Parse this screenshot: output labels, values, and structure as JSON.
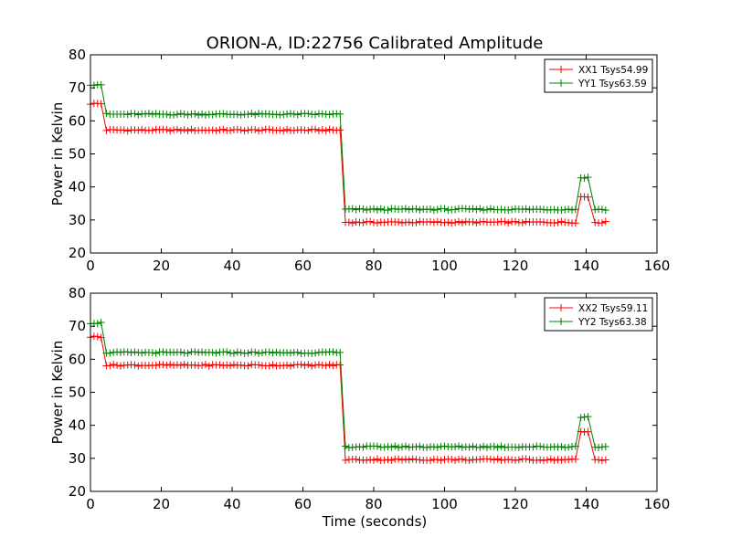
{
  "figure": {
    "title": "ORION-A, ID:22756 Calibrated Amplitude",
    "xlabel": "Time (seconds)"
  },
  "chart_data": [
    {
      "type": "line",
      "title": "ORION-A, ID:22756 Calibrated Amplitude",
      "xlabel": "",
      "ylabel": "Power in Kelvin",
      "xlim": [
        0,
        160
      ],
      "ylim": [
        20,
        80
      ],
      "xticks": [
        "0",
        "20",
        "40",
        "60",
        "80",
        "100",
        "120",
        "140",
        "160"
      ],
      "yticks": [
        "20",
        "30",
        "40",
        "50",
        "60",
        "70",
        "80"
      ],
      "legend_position": "top-right",
      "grid": false,
      "marker": "+",
      "series": [
        {
          "name": "XX1 Tsys54.99",
          "color": "#ff0000",
          "segments": [
            {
              "x_start": 0,
              "x_end": 3,
              "y": 65.2
            },
            {
              "x_start": 4.5,
              "x_end": 70.5,
              "y": 57.2
            },
            {
              "x_start": 72,
              "x_end": 137.5,
              "y": 29.3
            },
            {
              "x_start": 138.5,
              "x_end": 141,
              "y": 37.0
            },
            {
              "x_start": 142.5,
              "x_end": 145.5,
              "y": 29.3
            }
          ]
        },
        {
          "name": "YY1 Tsys63.59",
          "color": "#008000",
          "segments": [
            {
              "x_start": 0,
              "x_end": 3,
              "y": 71.0
            },
            {
              "x_start": 4.5,
              "x_end": 70.5,
              "y": 62.0
            },
            {
              "x_start": 72,
              "x_end": 137.5,
              "y": 33.2
            },
            {
              "x_start": 138.5,
              "x_end": 141,
              "y": 42.8
            },
            {
              "x_start": 142.5,
              "x_end": 145.5,
              "y": 33.2
            }
          ]
        }
      ]
    },
    {
      "type": "line",
      "title": "",
      "xlabel": "Time (seconds)",
      "ylabel": "Power in Kelvin",
      "xlim": [
        0,
        160
      ],
      "ylim": [
        20,
        80
      ],
      "xticks": [
        "0",
        "20",
        "40",
        "60",
        "80",
        "100",
        "120",
        "140",
        "160"
      ],
      "yticks": [
        "20",
        "30",
        "40",
        "50",
        "60",
        "70",
        "80"
      ],
      "legend_position": "top-right",
      "grid": false,
      "marker": "+",
      "series": [
        {
          "name": "XX2 Tsys59.11",
          "color": "#ff0000",
          "segments": [
            {
              "x_start": 0,
              "x_end": 3,
              "y": 66.8
            },
            {
              "x_start": 4.5,
              "x_end": 70.5,
              "y": 58.2
            },
            {
              "x_start": 72,
              "x_end": 137.5,
              "y": 29.6
            },
            {
              "x_start": 138.5,
              "x_end": 141,
              "y": 38.0
            },
            {
              "x_start": 142.5,
              "x_end": 145.5,
              "y": 29.6
            }
          ]
        },
        {
          "name": "YY2 Tsys63.38",
          "color": "#008000",
          "segments": [
            {
              "x_start": 0,
              "x_end": 3,
              "y": 71.0
            },
            {
              "x_start": 4.5,
              "x_end": 70.5,
              "y": 62.0
            },
            {
              "x_start": 72,
              "x_end": 137.5,
              "y": 33.5
            },
            {
              "x_start": 138.5,
              "x_end": 141,
              "y": 42.5
            },
            {
              "x_start": 142.5,
              "x_end": 145.5,
              "y": 33.5
            }
          ]
        }
      ]
    }
  ]
}
